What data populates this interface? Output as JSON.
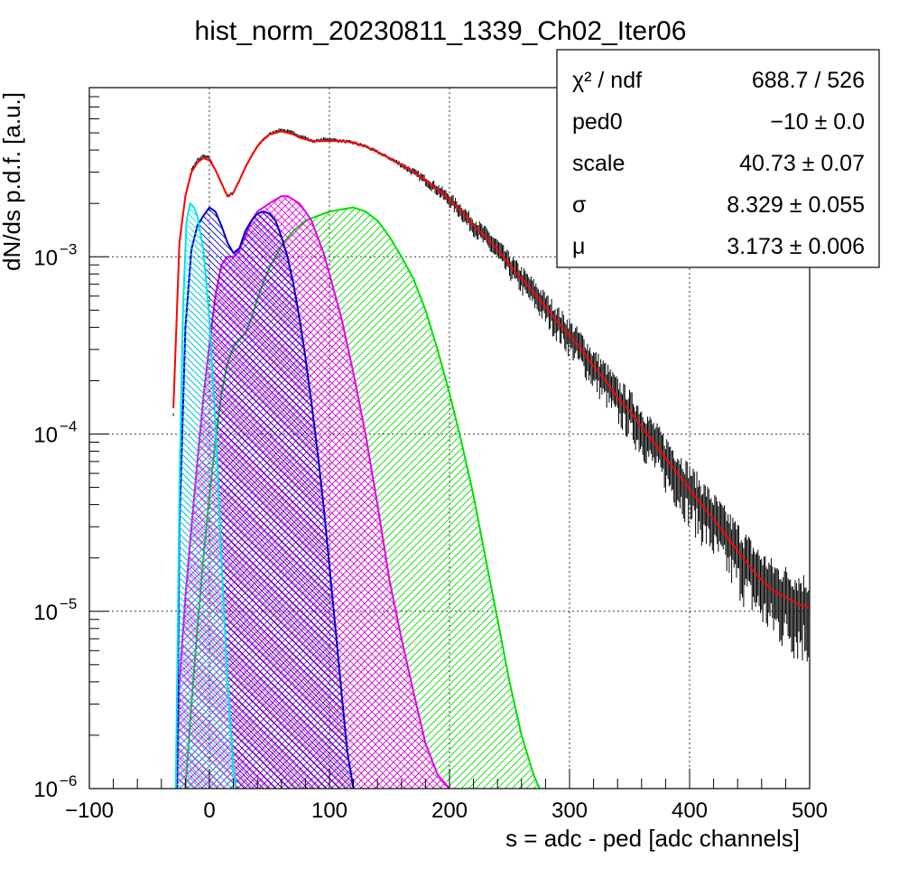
{
  "chart_data": {
    "type": "line",
    "title": "hist_norm_20230811_1339_Ch02_Iter06",
    "xlabel": "s = adc - ped [adc channels]",
    "ylabel": "dN/ds p.d.f. [a.u.]",
    "xlim": [
      -100,
      500
    ],
    "ylim": [
      1e-06,
      0.009
    ],
    "yscale": "log",
    "grid": true,
    "x_ticks": [
      "−100",
      "0",
      "100",
      "200",
      "300",
      "400",
      "500"
    ],
    "x_tick_values": [
      -100,
      0,
      100,
      200,
      300,
      400,
      500
    ],
    "y_ticks": [
      {
        "value": 1e-06,
        "mantissa": "10",
        "exp": "−6"
      },
      {
        "value": 1e-05,
        "mantissa": "10",
        "exp": "−5"
      },
      {
        "value": 0.0001,
        "mantissa": "10",
        "exp": "−4"
      },
      {
        "value": 0.001,
        "mantissa": "10",
        "exp": "−3"
      }
    ],
    "stats_box": {
      "position": "top-right",
      "rows": [
        {
          "label": "χ² / ndf",
          "value": "688.7 / 526"
        },
        {
          "label": "ped0",
          "value": "−10 ± 0.0"
        },
        {
          "label": "scale",
          "value": "40.73 ± 0.07"
        },
        {
          "label": "σ",
          "value": "8.329 ± 0.055"
        },
        {
          "label": "μ",
          "value": "3.173 ± 0.006"
        }
      ]
    },
    "series": [
      {
        "kind": "data",
        "color": "#000000",
        "x": [
          -30,
          -25,
          -20,
          -15,
          -10,
          -5,
          0,
          5,
          10,
          15,
          20,
          25,
          30,
          35,
          40,
          45,
          50,
          55,
          60,
          65,
          70,
          75,
          80,
          85,
          90,
          95,
          100,
          110,
          120,
          130,
          140,
          150,
          160,
          170,
          180,
          190,
          200,
          210,
          220,
          230,
          240,
          250,
          260,
          270,
          280,
          290,
          300,
          310,
          320,
          330,
          340,
          350,
          360,
          370,
          380,
          390,
          400,
          410,
          420,
          430,
          440,
          450,
          460,
          470,
          480,
          490,
          500
        ],
        "y": [
          0.00013,
          0.0012,
          0.0022,
          0.0031,
          0.0035,
          0.0037,
          0.0036,
          0.0031,
          0.0026,
          0.0022,
          0.0023,
          0.0027,
          0.0032,
          0.0037,
          0.0042,
          0.0046,
          0.0049,
          0.0051,
          0.0052,
          0.0051,
          0.005,
          0.0048,
          0.0047,
          0.0045,
          0.0045,
          0.0046,
          0.0046,
          0.0045,
          0.0044,
          0.0042,
          0.0039,
          0.0036,
          0.0033,
          0.003,
          0.0027,
          0.0024,
          0.0021,
          0.0018,
          0.0015,
          0.0013,
          0.0011,
          0.0009,
          0.00075,
          0.00063,
          0.00052,
          0.00043,
          0.00036,
          0.0003,
          0.00024,
          0.0002,
          0.00016,
          0.000135,
          0.00011,
          9e-05,
          7.3e-05,
          6e-05,
          4.9e-05,
          4e-05,
          3.3e-05,
          2.7e-05,
          2.2e-05,
          1.8e-05,
          1.5e-05,
          1.3e-05,
          1.2e-05,
          1.1e-05,
          1.05e-05
        ]
      },
      {
        "kind": "fit",
        "color": "#ff0000",
        "x": [
          -30,
          -25,
          -20,
          -15,
          -10,
          -5,
          0,
          5,
          10,
          15,
          20,
          25,
          30,
          35,
          40,
          45,
          50,
          55,
          60,
          65,
          70,
          75,
          80,
          85,
          90,
          95,
          100,
          110,
          120,
          130,
          140,
          150,
          160,
          170,
          180,
          190,
          200,
          210,
          220,
          230,
          240,
          250,
          260,
          270,
          280,
          290,
          300,
          310,
          320,
          330,
          340,
          350,
          360,
          370,
          380,
          390,
          400,
          410,
          420,
          430,
          440,
          450,
          460,
          470,
          480,
          490,
          500
        ],
        "y": [
          0.00014,
          0.0012,
          0.0022,
          0.003,
          0.0034,
          0.0036,
          0.0035,
          0.0031,
          0.0026,
          0.0022,
          0.0023,
          0.0027,
          0.0032,
          0.0037,
          0.0042,
          0.0046,
          0.0049,
          0.005,
          0.0051,
          0.005,
          0.0049,
          0.0047,
          0.0046,
          0.0045,
          0.0045,
          0.0045,
          0.0045,
          0.0045,
          0.0044,
          0.0042,
          0.0039,
          0.0036,
          0.0033,
          0.003,
          0.0027,
          0.0024,
          0.0021,
          0.0018,
          0.0015,
          0.0013,
          0.0011,
          0.0009,
          0.00075,
          0.00063,
          0.00052,
          0.00043,
          0.00036,
          0.0003,
          0.00024,
          0.0002,
          0.00016,
          0.000135,
          0.00011,
          9e-05,
          7.3e-05,
          6e-05,
          4.9e-05,
          4e-05,
          3.3e-05,
          2.7e-05,
          2.2e-05,
          1.8e-05,
          1.5e-05,
          1.3e-05,
          1.2e-05,
          1.1e-05,
          1.05e-05
        ]
      },
      {
        "kind": "component",
        "color": "#00e5e5",
        "hatch": "back",
        "x": [
          -28,
          -25,
          -22,
          -19,
          -16,
          -13,
          -10,
          -5,
          0,
          5,
          10,
          15,
          20,
          22
        ],
        "y": [
          1e-06,
          5e-05,
          0.0005,
          0.0016,
          0.002,
          0.0019,
          0.0017,
          0.0011,
          0.00045,
          0.00012,
          2e-05,
          4e-06,
          1.3e-06,
          1e-06
        ]
      },
      {
        "kind": "component",
        "color": "#0000cc",
        "hatch": "back",
        "x": [
          -27,
          -25,
          -20,
          -15,
          -10,
          -5,
          0,
          5,
          10,
          15,
          20,
          25,
          30,
          35,
          40,
          45,
          50,
          55,
          60,
          65,
          70,
          75,
          80,
          85,
          90,
          95,
          100,
          105,
          110,
          115,
          120
        ],
        "y": [
          1e-06,
          3e-05,
          0.0004,
          0.0011,
          0.0015,
          0.0017,
          0.0019,
          0.0018,
          0.0015,
          0.0012,
          0.00105,
          0.00112,
          0.0014,
          0.0016,
          0.00175,
          0.0018,
          0.00175,
          0.0016,
          0.0013,
          0.001,
          0.0007,
          0.00045,
          0.00027,
          0.00015,
          8e-05,
          4e-05,
          1.8e-05,
          8e-06,
          3.5e-06,
          1.6e-06,
          1e-06
        ]
      },
      {
        "kind": "component",
        "color": "#e500e5",
        "hatch": "both",
        "x": [
          -27,
          -25,
          -20,
          -15,
          -10,
          -5,
          0,
          5,
          10,
          15,
          20,
          25,
          30,
          35,
          40,
          45,
          50,
          55,
          60,
          65,
          70,
          75,
          80,
          85,
          90,
          95,
          100,
          110,
          120,
          130,
          140,
          150,
          160,
          170,
          180,
          190,
          200
        ],
        "y": [
          1e-06,
          4e-06,
          1.2e-05,
          3e-05,
          7e-05,
          0.00016,
          0.00032,
          0.0006,
          0.0009,
          0.001,
          0.001,
          0.0011,
          0.0013,
          0.0016,
          0.0018,
          0.0019,
          0.002,
          0.0021,
          0.0022,
          0.0022,
          0.0021,
          0.002,
          0.0018,
          0.0016,
          0.0013,
          0.00105,
          0.0008,
          0.00045,
          0.00022,
          0.0001,
          4e-05,
          1.5e-05,
          7e-06,
          3.5e-06,
          1.8e-06,
          1.2e-06,
          1e-06
        ]
      },
      {
        "kind": "component",
        "color": "#00dd00",
        "hatch": "fwd",
        "x": [
          -20,
          -15,
          -10,
          -5,
          0,
          5,
          10,
          15,
          20,
          25,
          30,
          35,
          40,
          45,
          50,
          55,
          60,
          65,
          70,
          80,
          90,
          100,
          110,
          120,
          130,
          140,
          150,
          160,
          170,
          180,
          190,
          200,
          210,
          220,
          230,
          240,
          250,
          260,
          270,
          275
        ],
        "y": [
          1e-06,
          3e-06,
          8e-06,
          2e-05,
          4.5e-05,
          9e-05,
          0.00017,
          0.00025,
          0.00031,
          0.00034,
          0.00037,
          0.00045,
          0.00058,
          0.00072,
          0.00087,
          0.001,
          0.00115,
          0.00128,
          0.0014,
          0.0016,
          0.0017,
          0.0018,
          0.00185,
          0.0019,
          0.0018,
          0.0016,
          0.0013,
          0.001,
          0.00075,
          0.0005,
          0.0003,
          0.00017,
          9e-05,
          4.5e-05,
          2e-05,
          9e-06,
          4e-06,
          2e-06,
          1.2e-06,
          1e-06
        ]
      }
    ]
  }
}
